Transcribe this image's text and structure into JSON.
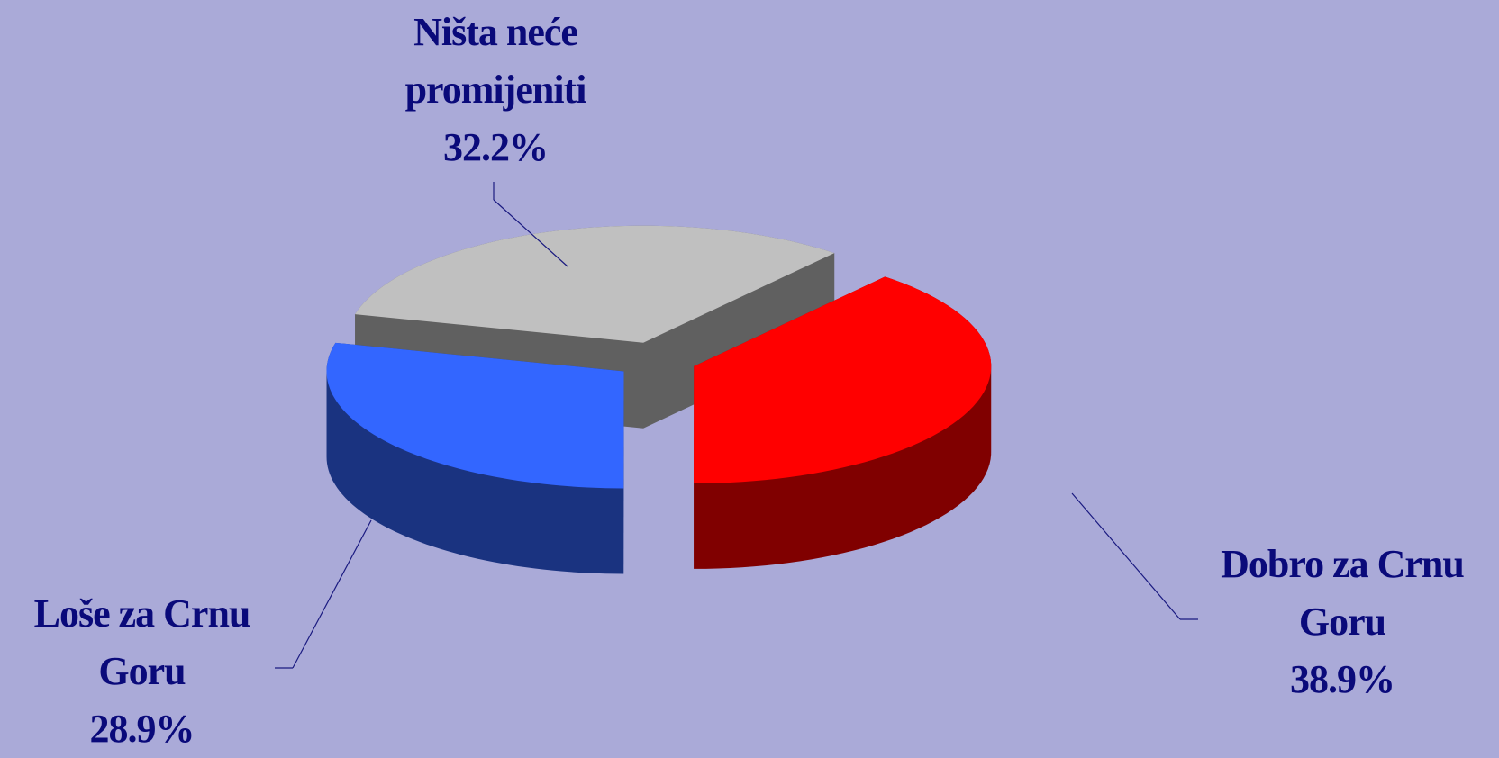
{
  "chart_data": {
    "type": "pie3d",
    "categories": [
      "Dobro za Crnu Goru",
      "Loše za Crnu Goru",
      "Ništa neće promijeniti"
    ],
    "values": [
      38.9,
      28.9,
      32.2
    ],
    "value_labels": [
      "38.9%",
      "28.9%",
      "32.2%"
    ],
    "colors": [
      "#ff0000",
      "#3366ff",
      "#c0c0c0"
    ],
    "side_colors": [
      "#800000",
      "#1a3380",
      "#606060"
    ]
  }
}
